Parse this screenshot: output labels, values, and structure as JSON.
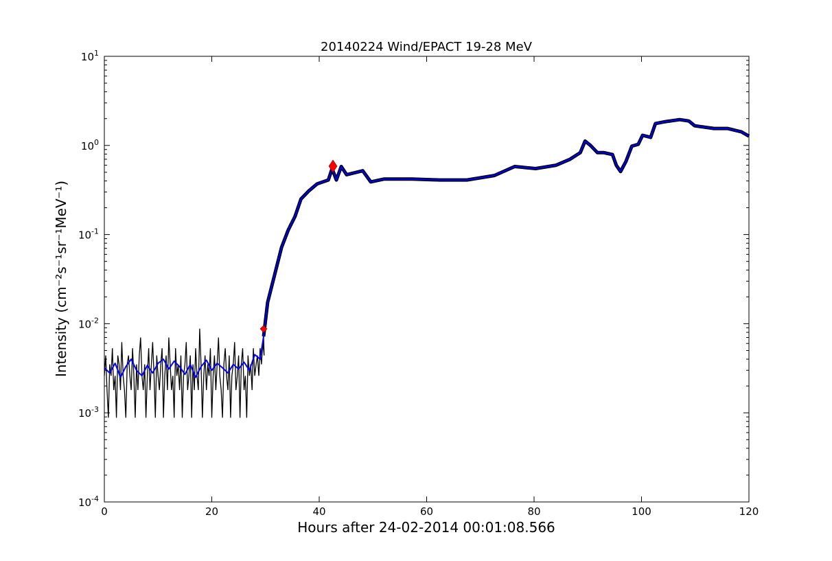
{
  "chart_data": {
    "type": "line",
    "title": "20140224 Wind/EPACT 19-28 MeV",
    "xlabel": "Hours after 24-02-2014 00:01:08.566",
    "ylabel": "Intensity (cm⁻²s⁻¹sr⁻¹MeV⁻¹)",
    "xlim": [
      0,
      120
    ],
    "ylim": [
      0.0001,
      10
    ],
    "yscale": "log",
    "grid": false,
    "xticks": [
      0,
      20,
      40,
      60,
      80,
      100,
      120
    ],
    "xtick_labels": [
      "0",
      "20",
      "40",
      "60",
      "80",
      "100",
      "120"
    ],
    "yticks": [
      0.0001,
      0.001,
      0.01,
      0.1,
      1,
      10
    ],
    "ytick_labels": [
      {
        "base": "10",
        "exp": "-4"
      },
      {
        "base": "10",
        "exp": "-3"
      },
      {
        "base": "10",
        "exp": "-2"
      },
      {
        "base": "10",
        "exp": "-1"
      },
      {
        "base": "10",
        "exp": "0"
      },
      {
        "base": "10",
        "exp": "1"
      }
    ],
    "colors": {
      "raw": "#000000",
      "smoothed": "#0000ff",
      "markers": "#ff0000"
    },
    "series": [
      {
        "style": "raw",
        "x_start": 0,
        "x_step": 0.25,
        "baseline_values": [
          0.0026,
          0.0044,
          0.0018,
          0.00088,
          0.0035,
          0.0026,
          0.0053,
          0.0018,
          0.0026,
          0.00088,
          0.0044,
          0.0035,
          0.0018,
          0.0062,
          0.0026,
          0.0018,
          0.00088,
          0.0035,
          0.0044,
          0.0026,
          0.0018,
          0.0053,
          0.0026,
          0.00088,
          0.0035,
          0.0018,
          0.0044,
          0.007,
          0.0026,
          0.0018,
          0.0035,
          0.00088,
          0.0026,
          0.0053,
          0.0018,
          0.0035,
          0.0062,
          0.0026,
          0.00088,
          0.0044,
          0.0026,
          0.0018,
          0.0035,
          0.0053,
          0.00088,
          0.0026,
          0.0044,
          0.0018,
          0.007,
          0.0035,
          0.0018,
          0.0026,
          0.00088,
          0.0053,
          0.0026,
          0.0035,
          0.0018,
          0.0044,
          0.00088,
          0.0026,
          0.0035,
          0.0062,
          0.0018,
          0.0026,
          0.0044,
          0.00088,
          0.0035,
          0.0018,
          0.0053,
          0.0026,
          0.0018,
          0.0088,
          0.0035,
          0.00088,
          0.0026,
          0.0044,
          0.0018,
          0.0035,
          0.0026,
          0.0053,
          0.00088,
          0.0026,
          0.0044,
          0.0018,
          0.0035,
          0.007,
          0.0026,
          0.0018,
          0.00088,
          0.0035,
          0.0053,
          0.0026,
          0.0018,
          0.0044,
          0.00088,
          0.0026,
          0.0035,
          0.0062,
          0.0018,
          0.0026,
          0.0044,
          0.00088,
          0.0035,
          0.0053,
          0.0018,
          0.0026,
          0.00088,
          0.0044,
          0.0026,
          0.0035,
          0.0018,
          0.0053,
          0.0026,
          0.0035,
          0.0044,
          0.0026,
          0.0053,
          0.0035,
          0.0062,
          0.0044
        ]
      },
      {
        "style": "smoothed",
        "x": [
          0,
          1,
          2,
          3,
          4,
          5,
          6,
          7,
          8,
          9,
          10,
          11,
          12,
          13,
          14,
          15,
          16,
          17,
          18,
          19,
          20,
          21,
          22,
          23,
          24,
          25,
          26,
          27,
          28,
          29,
          29.65,
          30.4,
          31.7,
          33,
          34.25,
          35.5,
          36.6,
          38.1,
          39.6,
          41.7,
          42.4,
          43.2,
          44.1,
          45.1,
          48.1,
          49.6,
          52.1,
          57.3,
          62.4,
          67.5,
          72.6,
          76.4,
          80.3,
          84.1,
          86.7,
          88.6,
          89.5,
          90.5,
          91.8,
          93,
          94.6,
          95.3,
          96.1,
          97.1,
          98.2,
          99.4,
          100.2,
          101.7,
          102.6,
          104.5,
          107.1,
          108.8,
          109.9,
          113.5,
          116,
          118.6,
          120
        ],
        "y": [
          0.0032,
          0.0028,
          0.0036,
          0.0025,
          0.0033,
          0.004,
          0.003,
          0.0026,
          0.0034,
          0.0028,
          0.0036,
          0.004,
          0.0031,
          0.0038,
          0.0033,
          0.0027,
          0.0035,
          0.0025,
          0.0033,
          0.0039,
          0.003,
          0.0036,
          0.0032,
          0.0028,
          0.0035,
          0.0031,
          0.0037,
          0.003,
          0.0045,
          0.004,
          0.0072,
          0.0174,
          0.0355,
          0.072,
          0.113,
          0.16,
          0.25,
          0.31,
          0.37,
          0.41,
          0.55,
          0.41,
          0.58,
          0.47,
          0.52,
          0.39,
          0.42,
          0.42,
          0.41,
          0.41,
          0.46,
          0.58,
          0.55,
          0.6,
          0.7,
          0.83,
          1.12,
          1.0,
          0.83,
          0.83,
          0.79,
          0.6,
          0.51,
          0.66,
          0.98,
          1.03,
          1.3,
          1.23,
          1.76,
          1.85,
          1.95,
          1.88,
          1.66,
          1.55,
          1.55,
          1.42,
          1.27
        ]
      }
    ],
    "markers": [
      {
        "shape": "diamond",
        "size": "small",
        "x": 29.65,
        "y": 0.00875
      },
      {
        "shape": "diamond",
        "size": "large",
        "x": 42.56,
        "y": 0.585
      }
    ]
  }
}
